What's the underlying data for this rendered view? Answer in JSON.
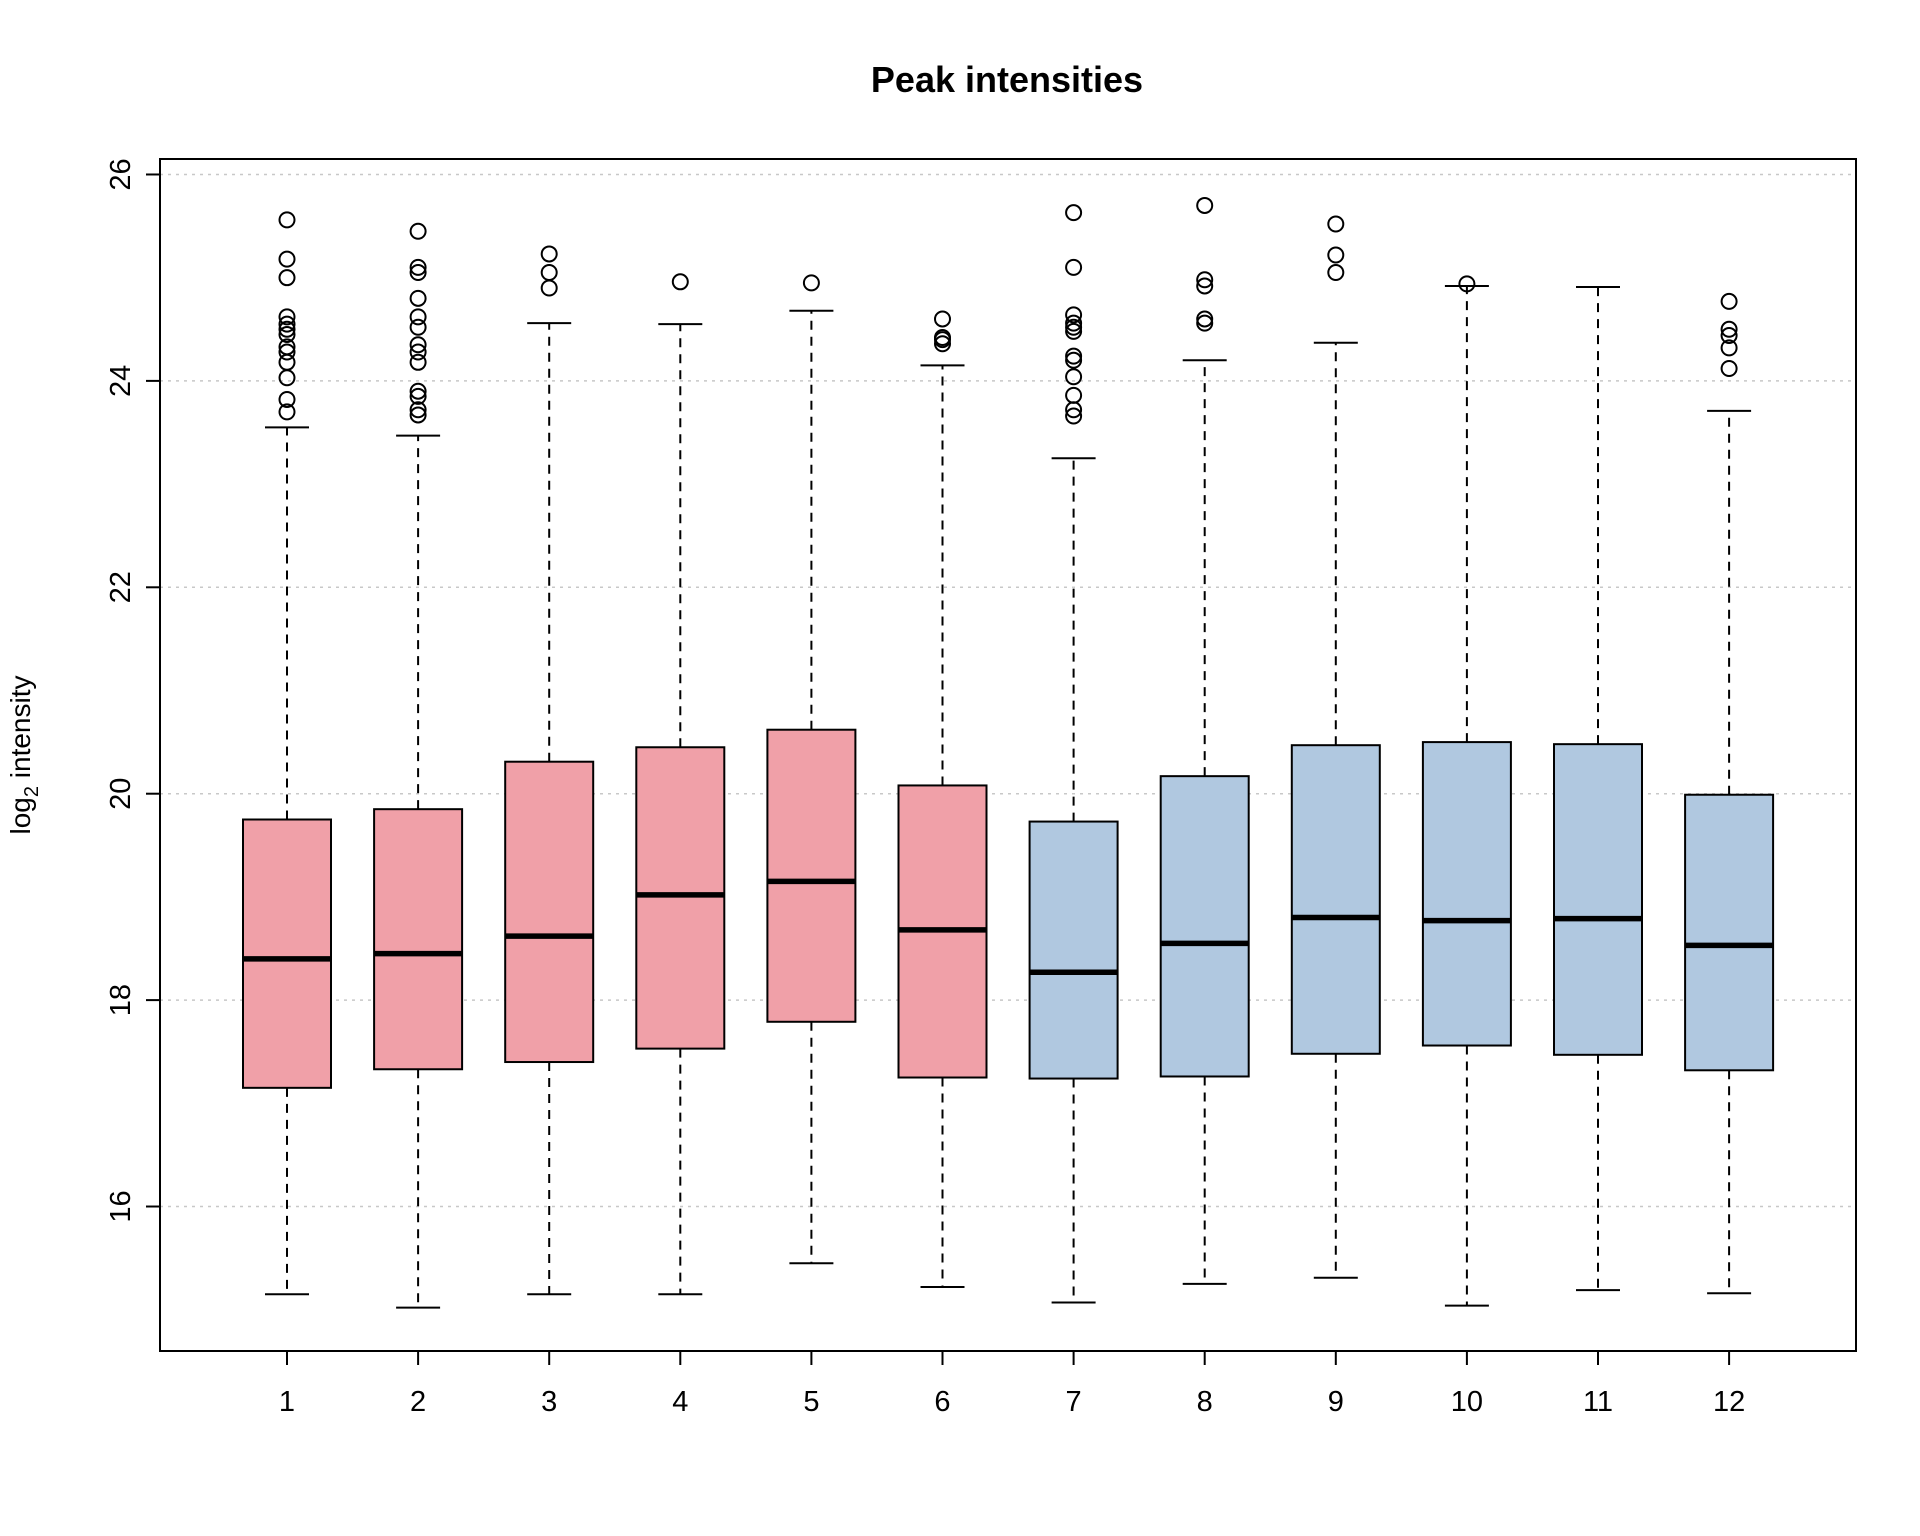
{
  "chart_data": {
    "type": "boxplot",
    "title": "Peak intensities",
    "ylabel": {
      "main": "log",
      "sub": "2",
      "rest": " intensity"
    },
    "xlabel": "",
    "ylim": [
      14.6,
      26.15
    ],
    "yticks": [
      16,
      18,
      20,
      22,
      24,
      26
    ],
    "grid": "horizontal-dotted",
    "colors": {
      "groupA": "#F0A0A8",
      "groupB": "#B0C8E0",
      "grid": "#c8c8c8",
      "stroke": "#000000"
    },
    "categories": [
      "1",
      "2",
      "3",
      "4",
      "5",
      "6",
      "7",
      "8",
      "9",
      "10",
      "11",
      "12"
    ],
    "boxes": [
      {
        "label": "1",
        "group": "groupA",
        "whisker_low": 15.15,
        "q1": 17.15,
        "median": 18.4,
        "q3": 19.75,
        "whisker_high": 23.55,
        "outliers": [
          23.7,
          23.82,
          24.03,
          24.18,
          24.28,
          24.33,
          24.45,
          24.5,
          24.55,
          24.62,
          25.0,
          25.18,
          25.56
        ]
      },
      {
        "label": "2",
        "group": "groupA",
        "whisker_low": 15.02,
        "q1": 17.33,
        "median": 18.45,
        "q3": 19.85,
        "whisker_high": 23.47,
        "outliers": [
          23.67,
          23.72,
          23.85,
          23.9,
          24.18,
          24.28,
          24.35,
          24.52,
          24.62,
          24.8,
          25.05,
          25.1,
          25.45
        ]
      },
      {
        "label": "3",
        "group": "groupA",
        "whisker_low": 15.15,
        "q1": 17.4,
        "median": 18.62,
        "q3": 20.31,
        "whisker_high": 24.56,
        "outliers": [
          24.9,
          25.05,
          25.23
        ]
      },
      {
        "label": "4",
        "group": "groupA",
        "whisker_low": 15.15,
        "q1": 17.53,
        "median": 19.02,
        "q3": 20.45,
        "whisker_high": 24.55,
        "outliers": [
          24.96
        ]
      },
      {
        "label": "5",
        "group": "groupA",
        "whisker_low": 15.45,
        "q1": 17.79,
        "median": 19.15,
        "q3": 20.62,
        "whisker_high": 24.68,
        "outliers": [
          24.95
        ]
      },
      {
        "label": "6",
        "group": "groupA",
        "whisker_low": 15.22,
        "q1": 17.25,
        "median": 18.68,
        "q3": 20.08,
        "whisker_high": 24.15,
        "outliers": [
          24.36,
          24.4,
          24.42,
          24.6
        ]
      },
      {
        "label": "7",
        "group": "groupB",
        "whisker_low": 15.07,
        "q1": 17.24,
        "median": 18.27,
        "q3": 19.73,
        "whisker_high": 23.25,
        "outliers": [
          23.66,
          23.72,
          23.86,
          24.04,
          24.2,
          24.24,
          24.48,
          24.52,
          24.56,
          24.64,
          25.1,
          25.63
        ]
      },
      {
        "label": "8",
        "group": "groupB",
        "whisker_low": 15.25,
        "q1": 17.26,
        "median": 18.55,
        "q3": 20.17,
        "whisker_high": 24.2,
        "outliers": [
          24.56,
          24.6,
          24.92,
          24.98,
          25.7
        ]
      },
      {
        "label": "9",
        "group": "groupB",
        "whisker_low": 15.31,
        "q1": 17.48,
        "median": 18.8,
        "q3": 20.47,
        "whisker_high": 24.37,
        "outliers": [
          25.05,
          25.22,
          25.52
        ]
      },
      {
        "label": "10",
        "group": "groupB",
        "whisker_low": 15.04,
        "q1": 17.56,
        "median": 18.77,
        "q3": 20.5,
        "whisker_high": 24.92,
        "outliers": [
          24.94
        ]
      },
      {
        "label": "11",
        "group": "groupB",
        "whisker_low": 15.19,
        "q1": 17.47,
        "median": 18.79,
        "q3": 20.48,
        "whisker_high": 24.91,
        "outliers": []
      },
      {
        "label": "12",
        "group": "groupB",
        "whisker_low": 15.16,
        "q1": 17.32,
        "median": 18.53,
        "q3": 19.99,
        "whisker_high": 23.71,
        "outliers": [
          24.12,
          24.32,
          24.44,
          24.5,
          24.77
        ]
      }
    ]
  }
}
